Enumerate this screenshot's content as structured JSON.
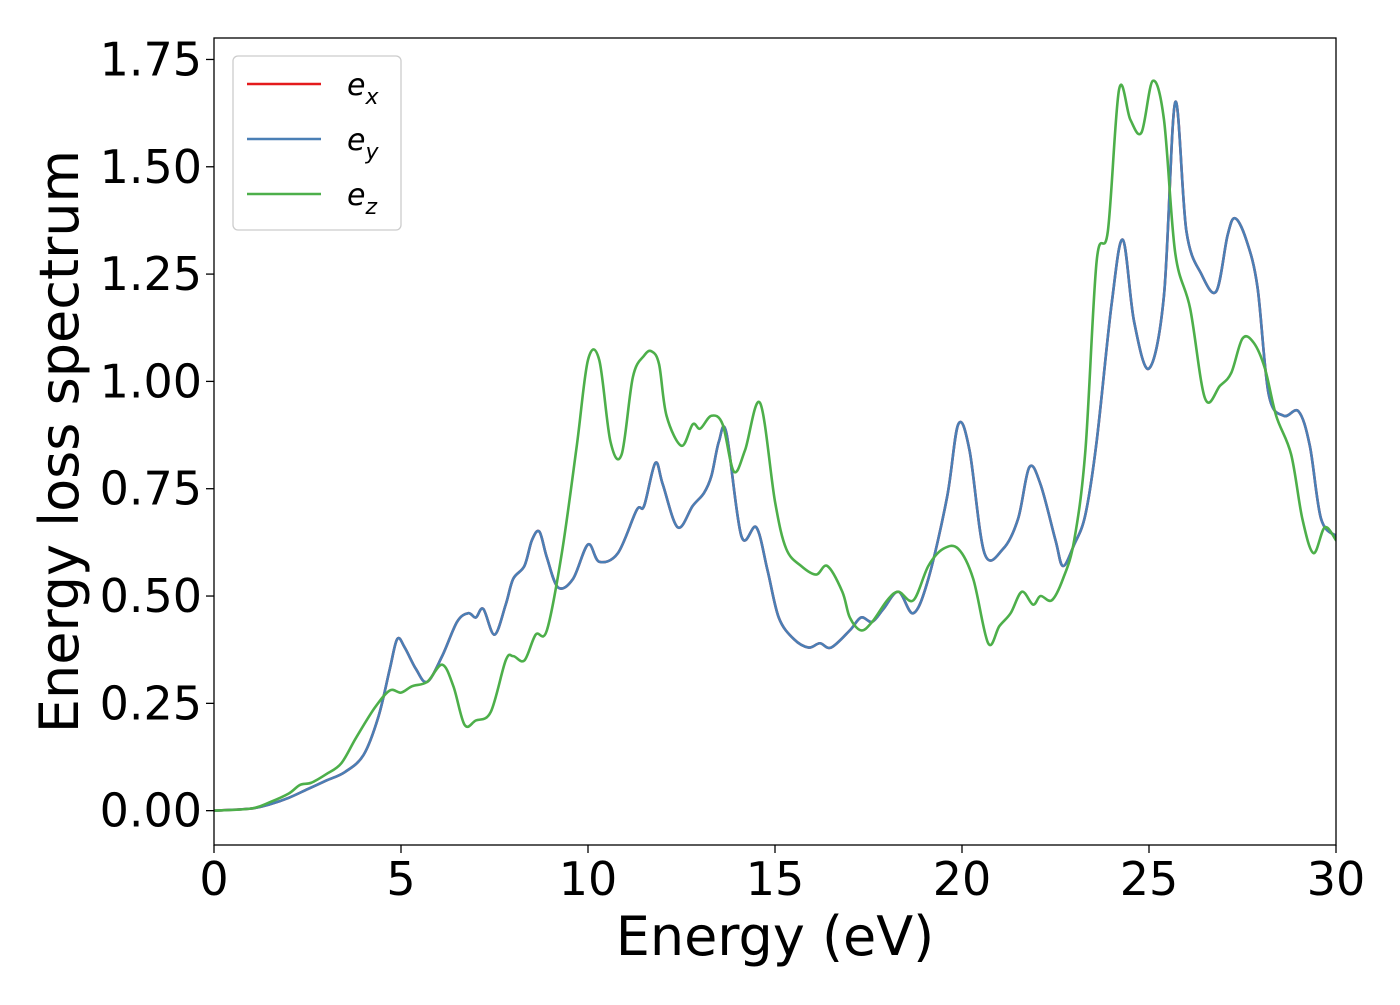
{
  "chart_data": {
    "type": "line",
    "title": "",
    "xlabel": "Energy (eV)",
    "ylabel": "Energy loss spectrum",
    "xlim": [
      0,
      30
    ],
    "ylim": [
      -0.08,
      1.8
    ],
    "xticks": [
      0,
      5,
      10,
      15,
      20,
      25,
      30
    ],
    "xtick_labels": [
      "0",
      "5",
      "10",
      "15",
      "20",
      "25",
      "30"
    ],
    "yticks": [
      0.0,
      0.25,
      0.5,
      0.75,
      1.0,
      1.25,
      1.5,
      1.75
    ],
    "ytick_labels": [
      "0.00",
      "0.25",
      "0.50",
      "0.75",
      "1.00",
      "1.25",
      "1.50",
      "1.75"
    ],
    "grid": false,
    "legend_position": "top-left",
    "series": [
      {
        "name": "e",
        "subscript": "x",
        "color": "#e41a1c",
        "x": [
          0,
          1,
          1.5,
          2,
          2.5,
          3,
          3.5,
          4,
          4.4,
          4.7,
          4.9,
          5.1,
          5.4,
          5.7,
          6.1,
          6.5,
          6.8,
          7.0,
          7.2,
          7.5,
          7.8,
          8.0,
          8.3,
          8.5,
          8.7,
          8.9,
          9.2,
          9.6,
          10.0,
          10.3,
          10.8,
          11.3,
          11.5,
          11.8,
          12.0,
          12.4,
          12.8,
          13.1,
          13.3,
          13.5,
          13.7,
          14.1,
          14.5,
          14.8,
          15.1,
          15.5,
          15.9,
          16.2,
          16.5,
          17.0,
          17.3,
          17.6,
          17.9,
          18.3,
          18.7,
          19.1,
          19.6,
          19.9,
          20.2,
          20.6,
          21.1,
          21.5,
          21.8,
          22.1,
          22.5,
          22.7,
          23.0,
          23.3,
          23.6,
          24.0,
          24.3,
          24.6,
          25.0,
          25.4,
          25.7,
          26.0,
          26.4,
          26.8,
          27.1,
          27.3,
          27.6,
          27.9,
          28.2,
          28.6,
          29.0,
          29.3,
          29.6,
          30.0
        ],
        "y": [
          0.0,
          0.005,
          0.015,
          0.03,
          0.05,
          0.07,
          0.09,
          0.13,
          0.22,
          0.33,
          0.4,
          0.38,
          0.33,
          0.3,
          0.36,
          0.44,
          0.46,
          0.45,
          0.47,
          0.41,
          0.48,
          0.54,
          0.57,
          0.63,
          0.65,
          0.59,
          0.52,
          0.54,
          0.62,
          0.58,
          0.6,
          0.7,
          0.71,
          0.81,
          0.76,
          0.66,
          0.71,
          0.74,
          0.78,
          0.86,
          0.88,
          0.64,
          0.66,
          0.56,
          0.45,
          0.4,
          0.38,
          0.39,
          0.38,
          0.42,
          0.45,
          0.44,
          0.47,
          0.51,
          0.46,
          0.54,
          0.73,
          0.9,
          0.84,
          0.6,
          0.61,
          0.68,
          0.8,
          0.76,
          0.63,
          0.57,
          0.62,
          0.69,
          0.86,
          1.18,
          1.33,
          1.14,
          1.03,
          1.2,
          1.65,
          1.35,
          1.25,
          1.21,
          1.34,
          1.38,
          1.33,
          1.22,
          0.97,
          0.92,
          0.93,
          0.85,
          0.68,
          0.64
        ]
      },
      {
        "name": "e",
        "subscript": "y",
        "color": "#4a7fb5",
        "x": [
          0,
          1,
          1.5,
          2,
          2.5,
          3,
          3.5,
          4,
          4.4,
          4.7,
          4.9,
          5.1,
          5.4,
          5.7,
          6.1,
          6.5,
          6.8,
          7.0,
          7.2,
          7.5,
          7.8,
          8.0,
          8.3,
          8.5,
          8.7,
          8.9,
          9.2,
          9.6,
          10.0,
          10.3,
          10.8,
          11.3,
          11.5,
          11.8,
          12.0,
          12.4,
          12.8,
          13.1,
          13.3,
          13.5,
          13.7,
          14.1,
          14.5,
          14.8,
          15.1,
          15.5,
          15.9,
          16.2,
          16.5,
          17.0,
          17.3,
          17.6,
          17.9,
          18.3,
          18.7,
          19.1,
          19.6,
          19.9,
          20.2,
          20.6,
          21.1,
          21.5,
          21.8,
          22.1,
          22.5,
          22.7,
          23.0,
          23.3,
          23.6,
          24.0,
          24.3,
          24.6,
          25.0,
          25.4,
          25.7,
          26.0,
          26.4,
          26.8,
          27.1,
          27.3,
          27.6,
          27.9,
          28.2,
          28.6,
          29.0,
          29.3,
          29.6,
          30.0
        ],
        "y": [
          0.0,
          0.005,
          0.015,
          0.03,
          0.05,
          0.07,
          0.09,
          0.13,
          0.22,
          0.33,
          0.4,
          0.38,
          0.33,
          0.3,
          0.36,
          0.44,
          0.46,
          0.45,
          0.47,
          0.41,
          0.48,
          0.54,
          0.57,
          0.63,
          0.65,
          0.59,
          0.52,
          0.54,
          0.62,
          0.58,
          0.6,
          0.7,
          0.71,
          0.81,
          0.76,
          0.66,
          0.71,
          0.74,
          0.78,
          0.86,
          0.88,
          0.64,
          0.66,
          0.56,
          0.45,
          0.4,
          0.38,
          0.39,
          0.38,
          0.42,
          0.45,
          0.44,
          0.47,
          0.51,
          0.46,
          0.54,
          0.73,
          0.9,
          0.84,
          0.6,
          0.61,
          0.68,
          0.8,
          0.76,
          0.63,
          0.57,
          0.62,
          0.69,
          0.86,
          1.18,
          1.33,
          1.14,
          1.03,
          1.2,
          1.65,
          1.35,
          1.25,
          1.21,
          1.34,
          1.38,
          1.33,
          1.22,
          0.97,
          0.92,
          0.93,
          0.85,
          0.68,
          0.64
        ]
      },
      {
        "name": "e",
        "subscript": "z",
        "color": "#4daf4a",
        "x": [
          0,
          1,
          1.5,
          2,
          2.3,
          2.6,
          3,
          3.4,
          3.8,
          4.3,
          4.7,
          5.0,
          5.3,
          5.7,
          6.1,
          6.4,
          6.7,
          7.0,
          7.4,
          7.8,
          8.0,
          8.3,
          8.6,
          8.9,
          9.3,
          9.7,
          10.0,
          10.3,
          10.6,
          10.9,
          11.2,
          11.5,
          11.7,
          11.9,
          12.1,
          12.5,
          12.8,
          13.0,
          13.3,
          13.6,
          13.9,
          14.2,
          14.6,
          15.0,
          15.3,
          15.7,
          16.1,
          16.4,
          16.8,
          17.0,
          17.3,
          17.6,
          18.0,
          18.3,
          18.7,
          19.1,
          19.5,
          19.9,
          20.3,
          20.7,
          21.0,
          21.3,
          21.6,
          21.9,
          22.1,
          22.4,
          22.7,
          23.0,
          23.3,
          23.6,
          23.9,
          24.2,
          24.5,
          24.8,
          25.1,
          25.4,
          25.7,
          26.1,
          26.5,
          26.9,
          27.2,
          27.5,
          27.8,
          28.1,
          28.4,
          28.8,
          29.1,
          29.4,
          29.7,
          30.0
        ],
        "y": [
          0.0,
          0.005,
          0.02,
          0.04,
          0.06,
          0.065,
          0.085,
          0.11,
          0.17,
          0.24,
          0.28,
          0.275,
          0.29,
          0.3,
          0.34,
          0.29,
          0.2,
          0.21,
          0.23,
          0.35,
          0.36,
          0.35,
          0.41,
          0.42,
          0.6,
          0.85,
          1.05,
          1.05,
          0.86,
          0.83,
          1.01,
          1.06,
          1.07,
          1.04,
          0.92,
          0.85,
          0.9,
          0.89,
          0.92,
          0.9,
          0.79,
          0.84,
          0.95,
          0.72,
          0.61,
          0.57,
          0.55,
          0.57,
          0.51,
          0.45,
          0.42,
          0.44,
          0.49,
          0.51,
          0.49,
          0.57,
          0.61,
          0.61,
          0.54,
          0.39,
          0.43,
          0.46,
          0.51,
          0.48,
          0.5,
          0.49,
          0.54,
          0.63,
          0.84,
          1.28,
          1.35,
          1.68,
          1.61,
          1.58,
          1.7,
          1.61,
          1.3,
          1.17,
          0.96,
          0.99,
          1.02,
          1.1,
          1.09,
          1.03,
          0.92,
          0.83,
          0.68,
          0.6,
          0.66,
          0.63
        ]
      }
    ]
  }
}
